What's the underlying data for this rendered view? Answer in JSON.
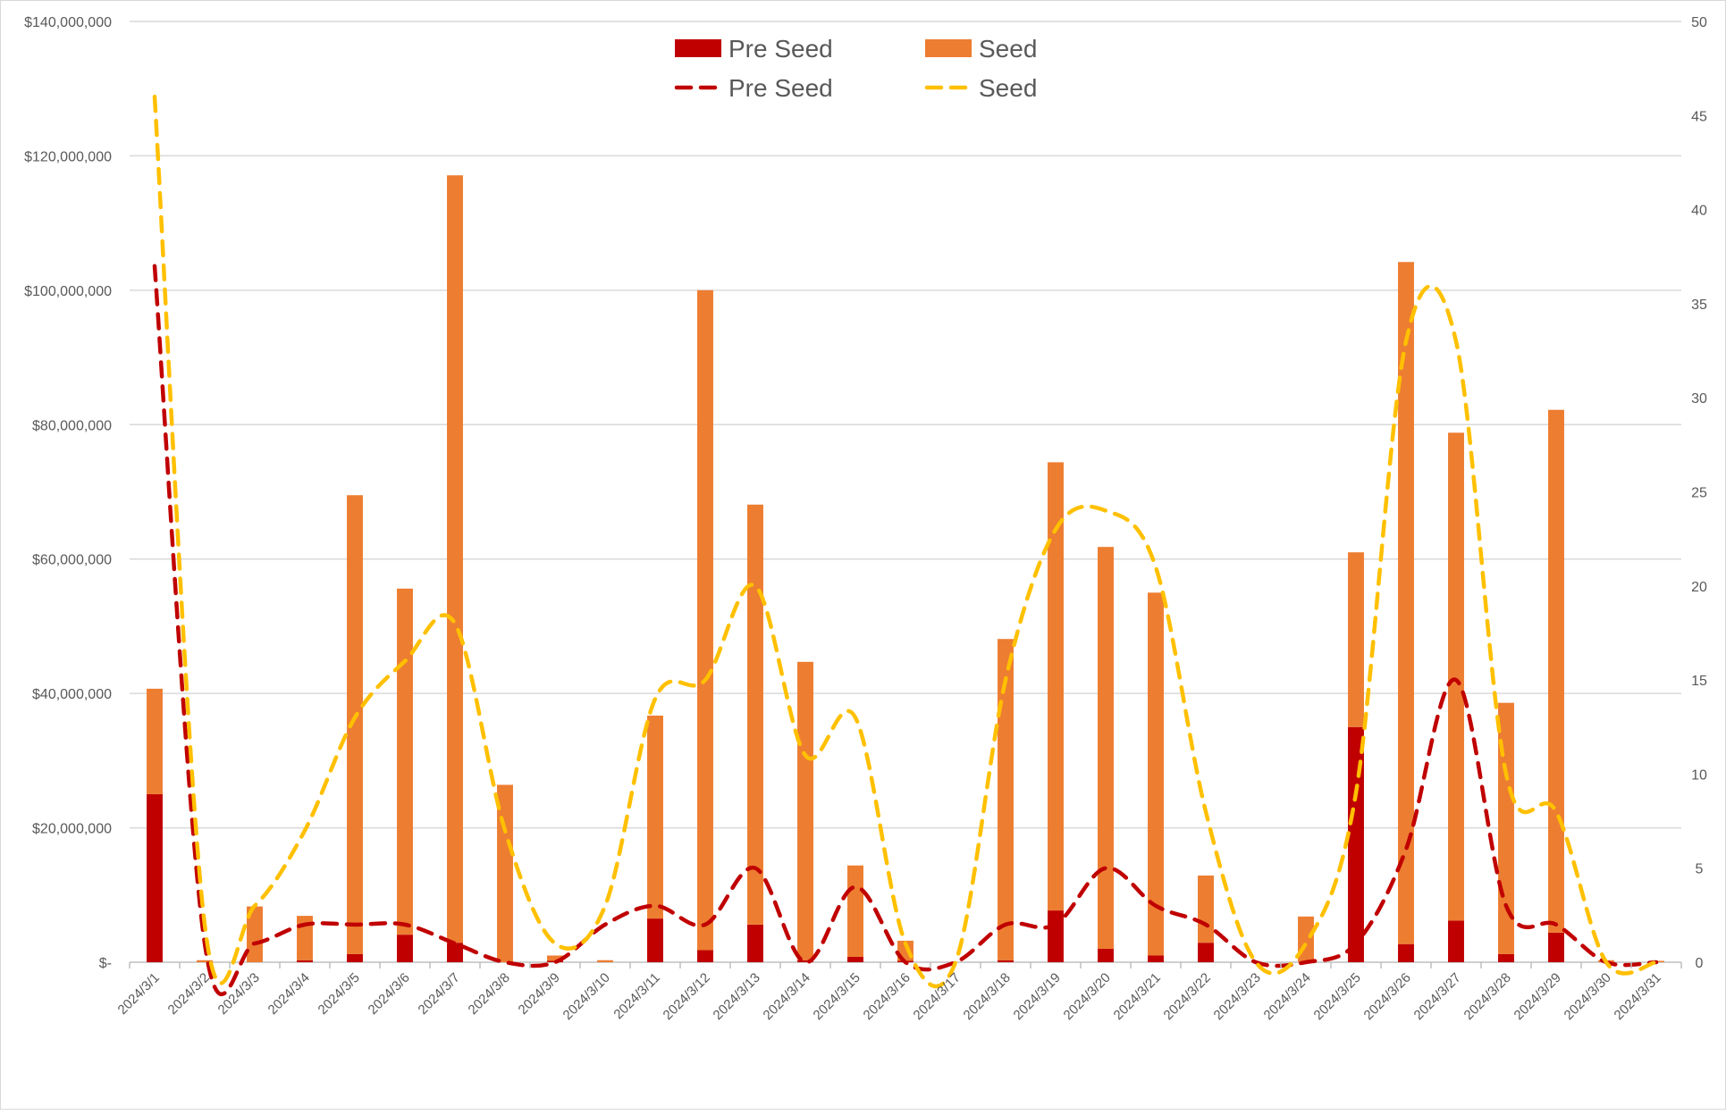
{
  "chart_data": {
    "type": "bar",
    "subtype": "stacked bar with line overlay (secondary axis)",
    "title": "",
    "categories": [
      "2024/3/1",
      "2024/3/2",
      "2024/3/3",
      "2024/3/4",
      "2024/3/5",
      "2024/3/6",
      "2024/3/7",
      "2024/3/8",
      "2024/3/9",
      "2024/3/10",
      "2024/3/11",
      "2024/3/12",
      "2024/3/13",
      "2024/3/14",
      "2024/3/15",
      "2024/3/16",
      "2024/3/17",
      "2024/3/18",
      "2024/3/19",
      "2024/3/20",
      "2024/3/21",
      "2024/3/22",
      "2024/3/23",
      "2024/3/24",
      "2024/3/25",
      "2024/3/26",
      "2024/3/27",
      "2024/3/28",
      "2024/3/29",
      "2024/3/30",
      "2024/3/31"
    ],
    "series": [
      {
        "name": "Pre Seed",
        "type": "bar",
        "axis": "left",
        "color": "#C00000",
        "values": [
          25000000,
          0,
          0,
          300000,
          1200000,
          4100000,
          2900000,
          0,
          200000,
          0,
          6500000,
          1800000,
          5600000,
          300000,
          800000,
          200000,
          0,
          300000,
          7700000,
          2000000,
          1000000,
          2900000,
          0,
          0,
          35000000,
          2700000,
          6200000,
          1200000,
          4400000,
          0,
          0
        ]
      },
      {
        "name": "Seed",
        "type": "bar",
        "axis": "left",
        "color": "#ED7D31",
        "values": [
          15700000,
          300000,
          8300000,
          6600000,
          68300000,
          51500000,
          114200000,
          26400000,
          800000,
          300000,
          30200000,
          98200000,
          62500000,
          44400000,
          13600000,
          3000000,
          0,
          47800000,
          66700000,
          59800000,
          54000000,
          10000000,
          0,
          6800000,
          26000000,
          101500000,
          72600000,
          37400000,
          77800000,
          300000,
          200000
        ]
      },
      {
        "name": "Pre Seed",
        "type": "line",
        "axis": "right",
        "color": "#C00000",
        "dash": true,
        "values": [
          37,
          1,
          1,
          2,
          2,
          2,
          1,
          0,
          0,
          2,
          3,
          2,
          5,
          0,
          4,
          0,
          0,
          2,
          2,
          5,
          3,
          2,
          0,
          0,
          1,
          6,
          15,
          3,
          2,
          0,
          0
        ]
      },
      {
        "name": "Seed",
        "type": "line",
        "axis": "right",
        "color": "#FFC000",
        "dash": true,
        "values": [
          46,
          2,
          3,
          7,
          13,
          16,
          18,
          7,
          1,
          3,
          14,
          15,
          20,
          11,
          13,
          1,
          0,
          15,
          23,
          24,
          21,
          8,
          0,
          1,
          9,
          33,
          33,
          10,
          8,
          0,
          0
        ]
      }
    ],
    "y_left": {
      "range": [
        0,
        140000000
      ],
      "ticks": [
        "$-",
        "$20,000,000",
        "$40,000,000",
        "$60,000,000",
        "$80,000,000",
        "$100,000,000",
        "$120,000,000",
        "$140,000,000"
      ]
    },
    "y_right": {
      "range": [
        0,
        50
      ],
      "ticks": [
        "0",
        "5",
        "10",
        "15",
        "20",
        "25",
        "30",
        "35",
        "40",
        "45",
        "50"
      ]
    },
    "xlabel": "",
    "ylabel": "",
    "grid": true,
    "legend": {
      "position": "top-center",
      "entries": [
        "Pre Seed",
        "Seed",
        "Pre Seed",
        "Seed"
      ]
    }
  }
}
